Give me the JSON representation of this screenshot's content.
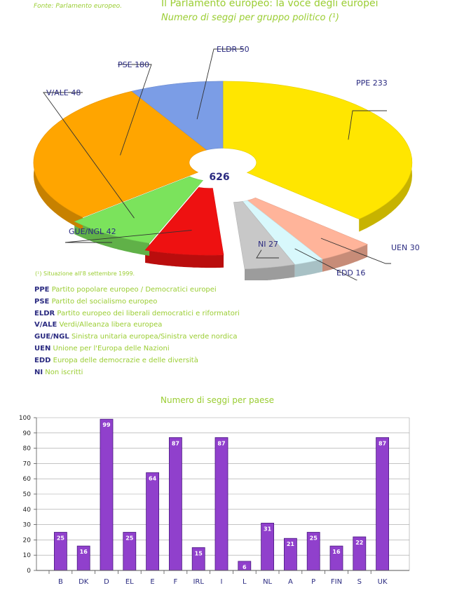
{
  "header": {
    "source": "Fonte: Parlamento europeo.",
    "title": "Il Parlamento europeo: la voce degli europei",
    "subtitle": "Numero di seggi per gruppo politico (¹)"
  },
  "footnote": "(¹) Situazione all'8 settembre 1999.",
  "legend": [
    {
      "abbr": "PPE",
      "desc": "Partito popolare europeo / Democratici europei"
    },
    {
      "abbr": "PSE",
      "desc": "Partito del socialismo europeo"
    },
    {
      "abbr": "ELDR",
      "desc": "Partito europeo dei liberali democratici e riformatori"
    },
    {
      "abbr": "V/ALE",
      "desc": "Verdi/Alleanza libera europea"
    },
    {
      "abbr": "GUE/NGL",
      "desc": "Sinistra unitaria europea/Sinistra verde nordica"
    },
    {
      "abbr": "UEN",
      "desc": "Unione per l'Europa delle Nazioni"
    },
    {
      "abbr": "EDD",
      "desc": "Europa delle democrazie e delle diversità"
    },
    {
      "abbr": "NI",
      "desc": "Non iscritti"
    }
  ],
  "chart_data": [
    {
      "type": "pie",
      "title": "Numero di seggi per gruppo politico (¹)",
      "total_label": "626",
      "slices": [
        {
          "label": "PPE",
          "value": 233,
          "color": "#ffe600"
        },
        {
          "label": "UEN",
          "value": 30,
          "color": "#ffb49a"
        },
        {
          "label": "EDD",
          "value": 16,
          "color": "#d8f8fc"
        },
        {
          "label": "NI",
          "value": 27,
          "color": "#c8c8c8"
        },
        {
          "label": "GUE/NGL",
          "value": 42,
          "color": "#ee1111"
        },
        {
          "label": "V/ALE",
          "value": 48,
          "color": "#7be35c"
        },
        {
          "label": "PSE",
          "value": 180,
          "color": "#ffa500"
        },
        {
          "label": "ELDR",
          "value": 50,
          "color": "#7b9de6"
        }
      ]
    },
    {
      "type": "bar",
      "title": "Numero di seggi per paese",
      "categories": [
        "B",
        "DK",
        "D",
        "EL",
        "E",
        "F",
        "IRL",
        "I",
        "L",
        "NL",
        "A",
        "P",
        "FIN",
        "S",
        "UK"
      ],
      "values": [
        25,
        16,
        99,
        25,
        64,
        87,
        15,
        87,
        6,
        31,
        21,
        25,
        16,
        22,
        87
      ],
      "ylim": [
        0,
        100
      ],
      "yticks": [
        0,
        10,
        20,
        30,
        40,
        50,
        60,
        70,
        80,
        90,
        100
      ],
      "grid": true,
      "bar_color": "#9040cc"
    }
  ]
}
